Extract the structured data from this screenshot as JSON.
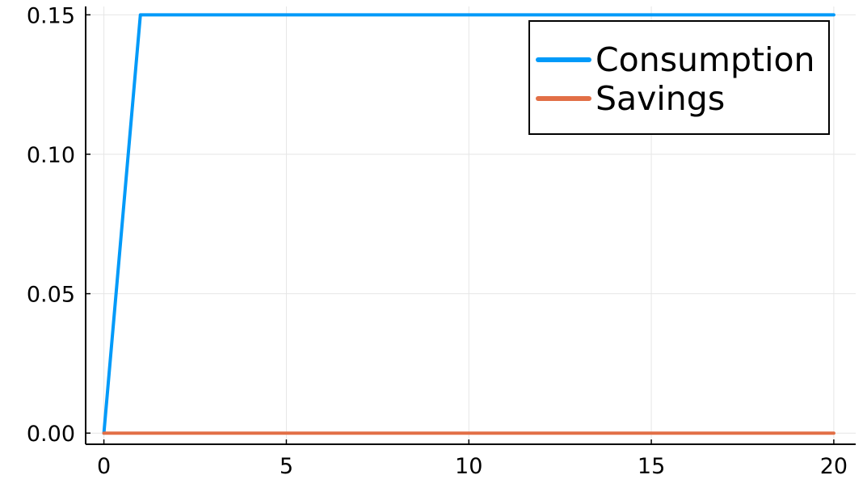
{
  "chart_data": {
    "type": "line",
    "title": "",
    "xlabel": "",
    "ylabel": "",
    "xlim": [
      -0.5,
      20.6
    ],
    "ylim": [
      -0.004,
      0.153
    ],
    "x_ticks": [
      0,
      5,
      10,
      15,
      20
    ],
    "x_tick_labels": [
      "0",
      "5",
      "10",
      "15",
      "20"
    ],
    "y_ticks": [
      0.0,
      0.05,
      0.1,
      0.15
    ],
    "y_tick_labels": [
      "0.00",
      "0.05",
      "0.10",
      "0.15"
    ],
    "grid": true,
    "legend_position": "top-right",
    "series": [
      {
        "name": "Consumption",
        "color": "#009af9",
        "x": [
          0,
          1,
          2,
          3,
          4,
          5,
          6,
          7,
          8,
          9,
          10,
          11,
          12,
          13,
          14,
          15,
          16,
          17,
          18,
          19,
          20
        ],
        "values": [
          0.0,
          0.15,
          0.15,
          0.15,
          0.15,
          0.15,
          0.15,
          0.15,
          0.15,
          0.15,
          0.15,
          0.15,
          0.15,
          0.15,
          0.15,
          0.15,
          0.15,
          0.15,
          0.15,
          0.15,
          0.15
        ]
      },
      {
        "name": "Savings",
        "color": "#e26f46",
        "x": [
          0,
          1,
          2,
          3,
          4,
          5,
          6,
          7,
          8,
          9,
          10,
          11,
          12,
          13,
          14,
          15,
          16,
          17,
          18,
          19,
          20
        ],
        "values": [
          0.0,
          0.0,
          0.0,
          0.0,
          0.0,
          0.0,
          0.0,
          0.0,
          0.0,
          0.0,
          0.0,
          0.0,
          0.0,
          0.0,
          0.0,
          0.0,
          0.0,
          0.0,
          0.0,
          0.0,
          0.0
        ]
      }
    ]
  }
}
